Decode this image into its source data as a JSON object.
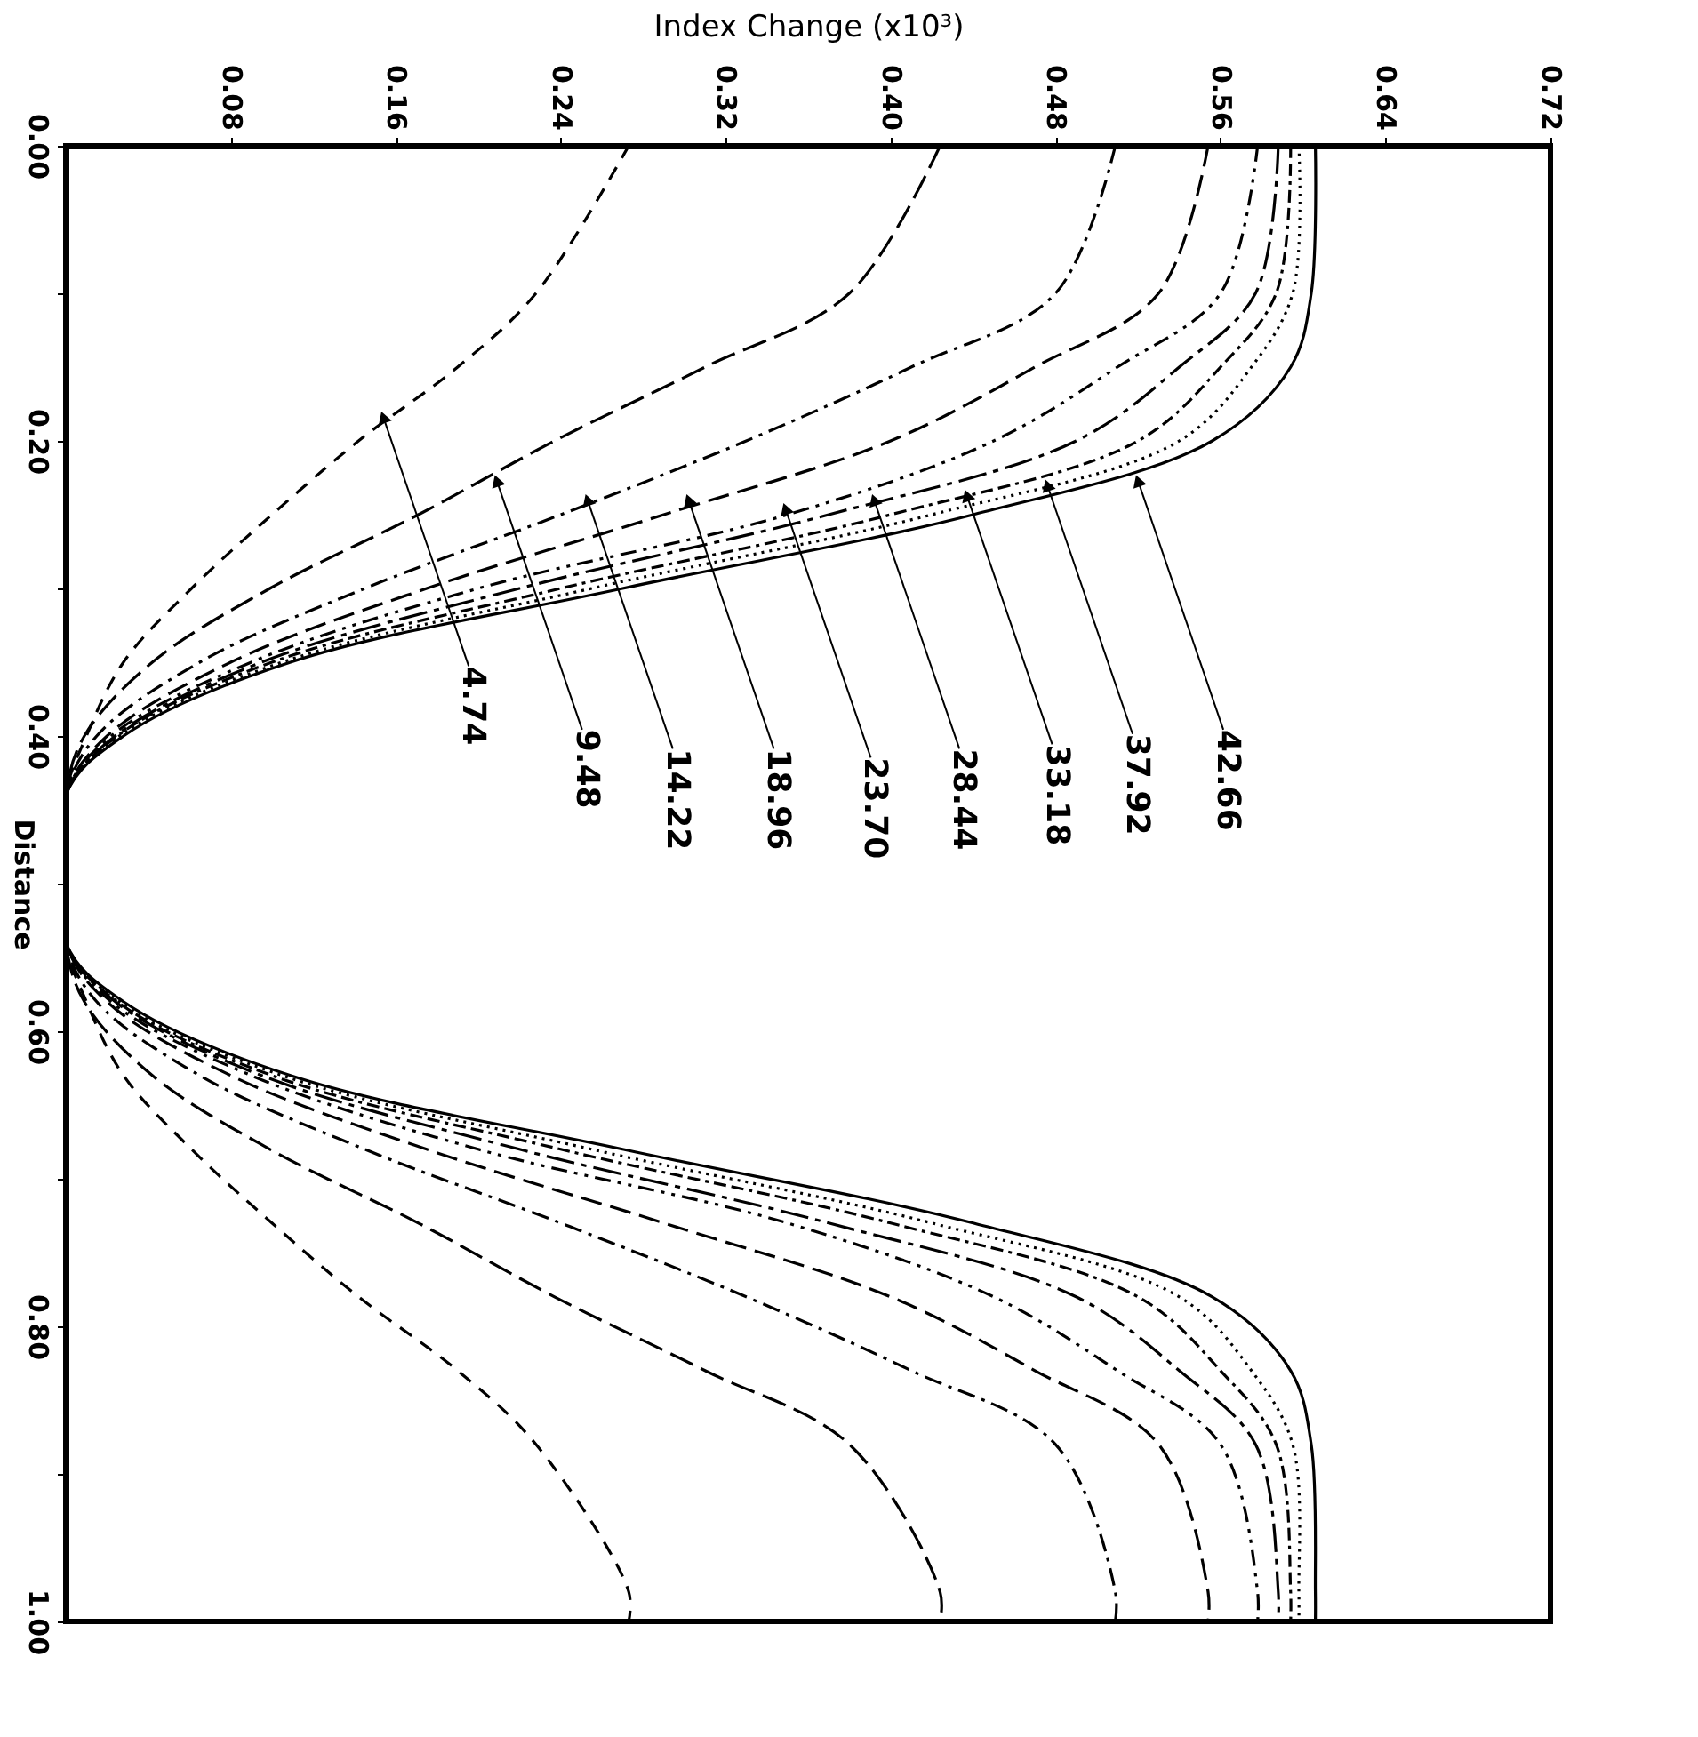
{
  "chart_data": {
    "type": "line",
    "xlabel": "Index Change (x10³)",
    "ylabel": "Distance",
    "xlim": [
      0.0,
      0.72
    ],
    "xticks": [
      {
        "value": 0.08,
        "label": "0.08"
      },
      {
        "value": 0.16,
        "label": "0.16"
      },
      {
        "value": 0.24,
        "label": "0.24"
      },
      {
        "value": 0.32,
        "label": "0.32"
      },
      {
        "value": 0.4,
        "label": "0.40"
      },
      {
        "value": 0.48,
        "label": "0.48"
      },
      {
        "value": 0.56,
        "label": "0.56"
      },
      {
        "value": 0.64,
        "label": "0.64"
      },
      {
        "value": 0.72,
        "label": "0.72"
      }
    ],
    "ylim": [
      1.0,
      0.0
    ],
    "yticks": [
      {
        "value": 0.0,
        "label": "0.00"
      },
      {
        "value": 0.1,
        "label": null
      },
      {
        "value": 0.2,
        "label": "0.20"
      },
      {
        "value": 0.3,
        "label": null
      },
      {
        "value": 0.4,
        "label": "0.40"
      },
      {
        "value": 0.5,
        "label": null
      },
      {
        "value": 0.6,
        "label": "0.60"
      },
      {
        "value": 0.7,
        "label": null
      },
      {
        "value": 0.8,
        "label": "0.80"
      },
      {
        "value": 0.9,
        "label": null
      },
      {
        "value": 1.0,
        "label": "1.00"
      }
    ],
    "grid": false,
    "marker": "none",
    "series": [
      {
        "color": "#000000",
        "line_style": "dashed",
        "x": [
          0.273,
          0.228,
          0.19,
          0.142,
          0.1,
          0.061,
          0.028,
          0.01,
          0,
          0,
          0.01,
          0.028,
          0.061,
          0.1,
          0.142,
          0.19,
          0.228,
          0.273,
          0.273
        ],
        "values": [
          0,
          0.1,
          0.15,
          0.2,
          0.25,
          0.3,
          0.35,
          0.4,
          0.44,
          0.54,
          0.58,
          0.63,
          0.68,
          0.73,
          0.78,
          0.83,
          0.88,
          0.98,
          1.0
        ]
      },
      {
        "color": "#000000",
        "line_style": "dashed",
        "x": [
          0.424,
          0.38,
          0.31,
          0.237,
          0.171,
          0.099,
          0.042,
          0.009,
          0,
          0,
          0.009,
          0.042,
          0.099,
          0.171,
          0.237,
          0.31,
          0.38,
          0.424,
          0.424
        ],
        "values": [
          0,
          0.1,
          0.15,
          0.2,
          0.25,
          0.3,
          0.35,
          0.4,
          0.44,
          0.54,
          0.58,
          0.63,
          0.68,
          0.73,
          0.78,
          0.83,
          0.88,
          0.98,
          1.0
        ]
      },
      {
        "color": "#000000",
        "line_style": "dashed",
        "x": [
          0.509,
          0.48,
          0.41,
          0.33,
          0.24,
          0.145,
          0.065,
          0.015,
          0,
          0,
          0.015,
          0.065,
          0.145,
          0.24,
          0.33,
          0.41,
          0.48,
          0.509,
          0.509
        ],
        "values": [
          0,
          0.1,
          0.15,
          0.2,
          0.25,
          0.3,
          0.35,
          0.4,
          0.44,
          0.54,
          0.58,
          0.63,
          0.68,
          0.73,
          0.78,
          0.83,
          0.88,
          0.98,
          1.0
        ]
      },
      {
        "color": "#000000",
        "line_style": "dashed",
        "x": [
          0.554,
          0.53,
          0.47,
          0.4,
          0.29,
          0.175,
          0.08,
          0.02,
          0,
          0,
          0.02,
          0.08,
          0.175,
          0.29,
          0.4,
          0.47,
          0.53,
          0.554,
          0.554
        ],
        "values": [
          0,
          0.1,
          0.15,
          0.2,
          0.25,
          0.3,
          0.35,
          0.4,
          0.44,
          0.54,
          0.58,
          0.63,
          0.68,
          0.73,
          0.78,
          0.83,
          0.88,
          0.98,
          1.0
        ]
      },
      {
        "color": "#000000",
        "line_style": "dashed",
        "x": [
          0.578,
          0.56,
          0.51,
          0.45,
          0.35,
          0.2,
          0.09,
          0.022,
          0,
          0,
          0.022,
          0.09,
          0.2,
          0.35,
          0.45,
          0.51,
          0.56,
          0.578,
          0.578
        ],
        "values": [
          0,
          0.1,
          0.15,
          0.2,
          0.25,
          0.3,
          0.35,
          0.4,
          0.44,
          0.54,
          0.58,
          0.63,
          0.68,
          0.73,
          0.78,
          0.83,
          0.88,
          0.98,
          1.0
        ]
      },
      {
        "color": "#000000",
        "line_style": "dashed",
        "x": [
          0.588,
          0.577,
          0.54,
          0.49,
          0.37,
          0.22,
          0.095,
          0.024,
          0,
          0,
          0.024,
          0.095,
          0.22,
          0.37,
          0.49,
          0.54,
          0.577,
          0.588,
          0.588
        ],
        "values": [
          0,
          0.1,
          0.15,
          0.2,
          0.25,
          0.3,
          0.35,
          0.4,
          0.44,
          0.54,
          0.58,
          0.63,
          0.68,
          0.73,
          0.78,
          0.83,
          0.88,
          0.98,
          1.0
        ]
      },
      {
        "color": "#000000",
        "line_style": "dashed",
        "x": [
          0.594,
          0.587,
          0.56,
          0.52,
          0.4,
          0.24,
          0.1,
          0.025,
          0,
          0,
          0.025,
          0.1,
          0.24,
          0.4,
          0.52,
          0.56,
          0.587,
          0.594,
          0.594
        ],
        "values": [
          0,
          0.1,
          0.15,
          0.2,
          0.25,
          0.3,
          0.35,
          0.4,
          0.44,
          0.54,
          0.58,
          0.63,
          0.68,
          0.73,
          0.78,
          0.83,
          0.88,
          0.98,
          1.0
        ]
      },
      {
        "color": "#000000",
        "line_style": "dotted",
        "x": [
          0.598,
          0.595,
          0.575,
          0.54,
          0.42,
          0.255,
          0.105,
          0.026,
          0,
          0,
          0.026,
          0.105,
          0.255,
          0.42,
          0.54,
          0.575,
          0.595,
          0.598,
          0.598
        ],
        "values": [
          0,
          0.1,
          0.15,
          0.2,
          0.25,
          0.3,
          0.35,
          0.4,
          0.44,
          0.54,
          0.58,
          0.63,
          0.68,
          0.73,
          0.78,
          0.83,
          0.88,
          0.98,
          1.0
        ]
      },
      {
        "color": "#000000",
        "line_style": "solid",
        "x": [
          0.606,
          0.604,
          0.594,
          0.556,
          0.44,
          0.27,
          0.109,
          0.028,
          0,
          0,
          0.028,
          0.109,
          0.27,
          0.44,
          0.556,
          0.594,
          0.604,
          0.606,
          0.606
        ],
        "values": [
          0,
          0.1,
          0.15,
          0.2,
          0.25,
          0.3,
          0.35,
          0.4,
          0.44,
          0.54,
          0.58,
          0.63,
          0.68,
          0.73,
          0.78,
          0.83,
          0.88,
          0.98,
          1.0
        ]
      }
    ],
    "annotations": [
      {
        "text": "4.74",
        "x": 0.154,
        "y": 0.184
      },
      {
        "text": "9.48",
        "x": 0.209,
        "y": 0.227
      },
      {
        "text": "14.22",
        "x": 0.253,
        "y": 0.24
      },
      {
        "text": "18.96",
        "x": 0.302,
        "y": 0.24
      },
      {
        "text": "23.70",
        "x": 0.349,
        "y": 0.246
      },
      {
        "text": "28.44",
        "x": 0.392,
        "y": 0.24
      },
      {
        "text": "33.18",
        "x": 0.437,
        "y": 0.237
      },
      {
        "text": "37.92",
        "x": 0.476,
        "y": 0.23
      },
      {
        "text": "42.66",
        "x": 0.52,
        "y": 0.227
      }
    ]
  }
}
